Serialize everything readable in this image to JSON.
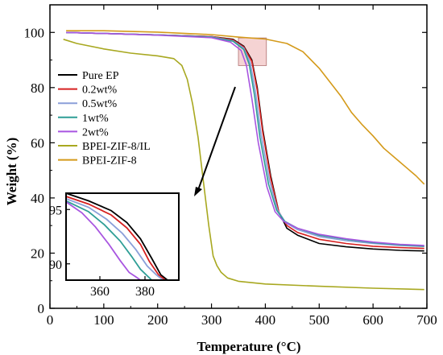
{
  "chart_data": [
    {
      "type": "line",
      "title": "",
      "xlabel": "Temperature (°C)",
      "ylabel": "Weight (%)",
      "xlim": [
        0,
        700
      ],
      "ylim": [
        0,
        110
      ],
      "xticks": [
        0,
        100,
        200,
        300,
        400,
        500,
        600,
        700
      ],
      "yticks": [
        0,
        20,
        40,
        60,
        80,
        100
      ],
      "grid": false,
      "legend_position": "left",
      "series": [
        {
          "name": "Pure EP",
          "color": "#000000",
          "x": [
            30,
            100,
            200,
            300,
            340,
            360,
            375,
            385,
            395,
            410,
            425,
            440,
            460,
            500,
            550,
            600,
            650,
            695
          ],
          "y": [
            100,
            99.6,
            99.1,
            98.5,
            97.5,
            95,
            90,
            80,
            65,
            48,
            35,
            29,
            26.5,
            23.5,
            22.3,
            21.5,
            21,
            20.8
          ]
        },
        {
          "name": "0.2wt%",
          "color": "#d62020",
          "x": [
            30,
            100,
            200,
            300,
            340,
            360,
            375,
            385,
            395,
            410,
            425,
            440,
            460,
            500,
            550,
            600,
            650,
            695
          ],
          "y": [
            100,
            99.6,
            99.1,
            98.5,
            97.3,
            94.7,
            89.5,
            79,
            64,
            47,
            35,
            30,
            27.5,
            25,
            23.5,
            22.5,
            22,
            21.7
          ]
        },
        {
          "name": "0.5wt%",
          "color": "#8b9fd9",
          "x": [
            30,
            100,
            200,
            300,
            340,
            360,
            372,
            382,
            392,
            408,
            423,
            438,
            460,
            500,
            550,
            600,
            650,
            695
          ],
          "y": [
            100,
            99.6,
            99.1,
            98.4,
            97,
            94.3,
            89,
            78,
            63,
            46,
            35.5,
            31,
            28.5,
            26,
            24.5,
            23.5,
            22.8,
            22.4
          ]
        },
        {
          "name": "1wt%",
          "color": "#2e9e96",
          "x": [
            30,
            100,
            200,
            300,
            340,
            360,
            370,
            380,
            390,
            406,
            421,
            436,
            460,
            500,
            550,
            600,
            650,
            695
          ],
          "y": [
            100,
            99.6,
            99.1,
            98.3,
            96.8,
            93.8,
            88.5,
            77,
            62,
            45,
            35.5,
            31.5,
            29,
            26.5,
            25,
            23.8,
            23,
            22.5
          ]
        },
        {
          "name": "2wt%",
          "color": "#a855e0",
          "x": [
            30,
            100,
            200,
            300,
            335,
            355,
            365,
            375,
            387,
            403,
            418,
            434,
            460,
            500,
            550,
            600,
            650,
            695
          ],
          "y": [
            100,
            99.6,
            99,
            98.1,
            96.5,
            93.5,
            88,
            76,
            60,
            44,
            35,
            31.5,
            29,
            26.8,
            25.2,
            24,
            23.2,
            22.8
          ]
        },
        {
          "name": "BPEI-ZIF-8/IL",
          "color": "#a8a820",
          "x": [
            25,
            50,
            100,
            150,
            200,
            230,
            245,
            255,
            265,
            275,
            285,
            295,
            303,
            310,
            318,
            330,
            350,
            400,
            500,
            600,
            695
          ],
          "y": [
            97.5,
            96,
            94,
            92.5,
            91.5,
            90.5,
            88,
            83,
            74,
            62,
            46,
            30,
            19,
            15.5,
            13,
            11,
            9.8,
            8.8,
            8,
            7.3,
            6.8
          ]
        },
        {
          "name": "BPEI-ZIF-8",
          "color": "#d49a1a",
          "x": [
            30,
            100,
            200,
            300,
            350,
            400,
            440,
            470,
            500,
            520,
            540,
            560,
            580,
            600,
            620,
            650,
            680,
            695
          ],
          "y": [
            100.6,
            100.6,
            100.1,
            99.2,
            98.3,
            97.6,
            96,
            93,
            87,
            82,
            77,
            71,
            66.5,
            62.5,
            58,
            53,
            48,
            45
          ]
        }
      ],
      "highlight_box": {
        "x": [
          350,
          402
        ],
        "y": [
          88,
          98
        ]
      }
    },
    {
      "type": "line",
      "title": "",
      "xlim": [
        345,
        395
      ],
      "ylim": [
        88.5,
        96.5
      ],
      "xticks": [
        360,
        380
      ],
      "yticks": [
        90,
        95
      ],
      "series": [
        {
          "name": "Pure EP",
          "color": "#000000",
          "x": [
            345,
            355,
            365,
            372,
            378,
            383,
            387,
            390
          ],
          "y": [
            96.5,
            95.8,
            94.9,
            93.8,
            92.3,
            90.5,
            89,
            88.5
          ]
        },
        {
          "name": "0.2wt%",
          "color": "#d62020",
          "x": [
            345,
            355,
            365,
            372,
            378,
            382,
            386,
            389
          ],
          "y": [
            96.2,
            95.5,
            94.5,
            93.3,
            91.8,
            90.2,
            89,
            88.5
          ]
        },
        {
          "name": "0.5wt%",
          "color": "#8b9fd9",
          "x": [
            345,
            355,
            363,
            370,
            376,
            381,
            385,
            388
          ],
          "y": [
            96,
            95.2,
            94.1,
            92.8,
            91.3,
            89.8,
            89,
            88.5
          ]
        },
        {
          "name": "1wt%",
          "color": "#2e9e96",
          "x": [
            345,
            355,
            362,
            369,
            374,
            378,
            381,
            383
          ],
          "y": [
            95.8,
            94.8,
            93.6,
            92.1,
            90.7,
            89.5,
            88.9,
            88.5
          ]
        },
        {
          "name": "2wt%",
          "color": "#a855e0",
          "x": [
            345,
            352,
            358,
            364,
            369,
            373,
            376,
            378
          ],
          "y": [
            95.7,
            94.7,
            93.4,
            91.8,
            90.3,
            89.2,
            88.8,
            88.5
          ]
        }
      ]
    }
  ]
}
